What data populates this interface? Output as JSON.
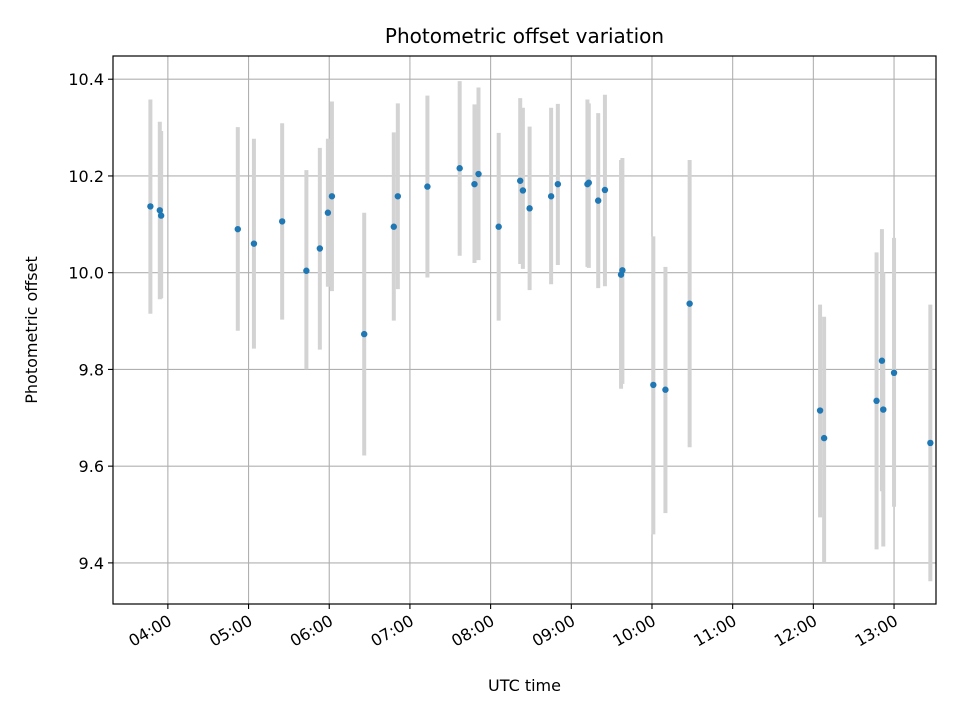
{
  "chart_data": {
    "type": "scatter",
    "title": "Photometric offset variation",
    "xlabel": "UTC time",
    "ylabel": "Photometric offset",
    "x_ticks": [
      "04:00",
      "05:00",
      "06:00",
      "07:00",
      "08:00",
      "09:00",
      "10:00",
      "11:00",
      "12:00",
      "13:00"
    ],
    "y_ticks": [
      "9.4",
      "9.6",
      "9.8",
      "10.0",
      "10.2",
      "10.4"
    ],
    "x_tick_hours": [
      4,
      5,
      6,
      7,
      8,
      9,
      10,
      11,
      12,
      13
    ],
    "y_tick_values": [
      9.4,
      9.6,
      9.8,
      10.0,
      10.2,
      10.4
    ],
    "xlim_hours": [
      3.32,
      13.52
    ],
    "ylim": [
      9.315,
      10.448
    ],
    "grid": true,
    "x_tick_rotation_deg": 30,
    "point_color": "#1f77b4",
    "errorbar_color": "#d3d3d3",
    "points": [
      {
        "t": "03:47",
        "y": 10.137,
        "lo": 9.915,
        "hi": 10.358
      },
      {
        "t": "03:54",
        "y": 10.129,
        "lo": 9.945,
        "hi": 10.312
      },
      {
        "t": "03:55",
        "y": 10.118,
        "lo": 9.947,
        "hi": 10.293
      },
      {
        "t": "04:52",
        "y": 10.09,
        "lo": 9.88,
        "hi": 10.301
      },
      {
        "t": "05:04",
        "y": 10.06,
        "lo": 9.843,
        "hi": 10.277
      },
      {
        "t": "05:25",
        "y": 10.106,
        "lo": 9.903,
        "hi": 10.309
      },
      {
        "t": "05:43",
        "y": 10.004,
        "lo": 9.8,
        "hi": 10.212
      },
      {
        "t": "05:53",
        "y": 10.05,
        "lo": 9.841,
        "hi": 10.258
      },
      {
        "t": "05:59",
        "y": 10.124,
        "lo": 9.971,
        "hi": 10.277
      },
      {
        "t": "06:02",
        "y": 10.158,
        "lo": 9.962,
        "hi": 10.354
      },
      {
        "t": "06:26",
        "y": 9.873,
        "lo": 9.622,
        "hi": 10.124
      },
      {
        "t": "06:48",
        "y": 10.095,
        "lo": 9.901,
        "hi": 10.29
      },
      {
        "t": "06:51",
        "y": 10.158,
        "lo": 9.966,
        "hi": 10.35
      },
      {
        "t": "07:13",
        "y": 10.178,
        "lo": 9.99,
        "hi": 10.366
      },
      {
        "t": "07:37",
        "y": 10.216,
        "lo": 10.035,
        "hi": 10.396
      },
      {
        "t": "07:48",
        "y": 10.183,
        "lo": 10.02,
        "hi": 10.348
      },
      {
        "t": "07:51",
        "y": 10.204,
        "lo": 10.026,
        "hi": 10.383
      },
      {
        "t": "08:06",
        "y": 10.095,
        "lo": 9.901,
        "hi": 10.289
      },
      {
        "t": "08:22",
        "y": 10.19,
        "lo": 10.018,
        "hi": 10.361
      },
      {
        "t": "08:24",
        "y": 10.17,
        "lo": 10.008,
        "hi": 10.341
      },
      {
        "t": "08:29",
        "y": 10.133,
        "lo": 9.964,
        "hi": 10.302
      },
      {
        "t": "08:45",
        "y": 10.158,
        "lo": 9.976,
        "hi": 10.341
      },
      {
        "t": "08:50",
        "y": 10.183,
        "lo": 10.016,
        "hi": 10.349
      },
      {
        "t": "09:12",
        "y": 10.183,
        "lo": 10.012,
        "hi": 10.358
      },
      {
        "t": "09:13",
        "y": 10.186,
        "lo": 10.01,
        "hi": 10.35
      },
      {
        "t": "09:20",
        "y": 10.149,
        "lo": 9.968,
        "hi": 10.33
      },
      {
        "t": "09:25",
        "y": 10.171,
        "lo": 9.972,
        "hi": 10.368
      },
      {
        "t": "09:37",
        "y": 9.996,
        "lo": 9.76,
        "hi": 10.233
      },
      {
        "t": "09:38",
        "y": 10.005,
        "lo": 9.77,
        "hi": 10.237
      },
      {
        "t": "10:01",
        "y": 9.768,
        "lo": 9.459,
        "hi": 10.075
      },
      {
        "t": "10:10",
        "y": 9.758,
        "lo": 9.503,
        "hi": 10.012
      },
      {
        "t": "10:28",
        "y": 9.936,
        "lo": 9.639,
        "hi": 10.233
      },
      {
        "t": "12:05",
        "y": 9.715,
        "lo": 9.494,
        "hi": 9.934
      },
      {
        "t": "12:08",
        "y": 9.658,
        "lo": 9.4,
        "hi": 9.909
      },
      {
        "t": "12:47",
        "y": 9.735,
        "lo": 9.428,
        "hi": 10.042
      },
      {
        "t": "12:51",
        "y": 9.818,
        "lo": 9.548,
        "hi": 10.09
      },
      {
        "t": "12:52",
        "y": 9.717,
        "lo": 9.434,
        "hi": 10.0
      },
      {
        "t": "13:00",
        "y": 9.793,
        "lo": 9.516,
        "hi": 10.072
      },
      {
        "t": "13:27",
        "y": 9.648,
        "lo": 9.362,
        "hi": 9.934
      }
    ]
  }
}
